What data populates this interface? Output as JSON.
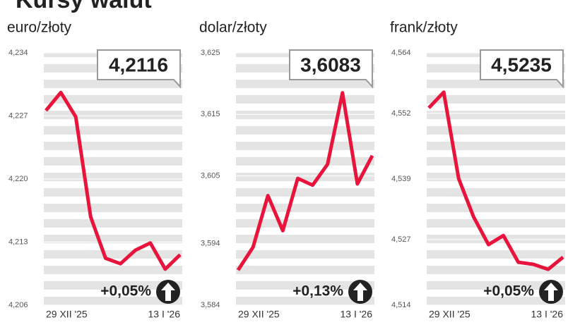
{
  "title": "Kursy walut",
  "chart_data": [
    {
      "type": "line",
      "title": "euro/złoty",
      "categories": [
        "29 XII '25",
        null,
        null,
        null,
        null,
        null,
        null,
        null,
        null,
        "13 I '26"
      ],
      "series": [
        {
          "color": "#e8143c",
          "values": [
            4.2276,
            4.2296,
            4.2269,
            4.2158,
            4.2112,
            4.2106,
            4.2121,
            4.2129,
            4.21,
            4.2116
          ]
        }
      ],
      "ylim": [
        4.206,
        4.234
      ],
      "yticks": [
        {
          "value": 4.206,
          "label": "4,206"
        },
        {
          "value": 4.213,
          "label": "4,213"
        },
        {
          "value": 4.22,
          "label": "4,220"
        },
        {
          "value": 4.227,
          "label": "4,227"
        },
        {
          "value": 4.234,
          "label": "4,234"
        }
      ],
      "annotations": {
        "current": "4,2116",
        "change": "+0,05%"
      }
    },
    {
      "type": "line",
      "title": "dolar/złoty",
      "categories": [
        "29 XII '25",
        null,
        null,
        null,
        null,
        null,
        null,
        null,
        null,
        "13 I '26"
      ],
      "series": [
        {
          "color": "#e8143c",
          "values": [
            3.5897,
            3.5934,
            3.6018,
            3.5961,
            3.6046,
            3.6035,
            3.6069,
            3.6185,
            3.6037,
            3.6083
          ]
        }
      ],
      "ylim": [
        3.584,
        3.625
      ],
      "yticks": [
        {
          "value": 3.584,
          "label": "3,584"
        },
        {
          "value": 3.594,
          "label": "3,594"
        },
        {
          "value": 3.605,
          "label": "3,605"
        },
        {
          "value": 3.615,
          "label": "3,615"
        },
        {
          "value": 3.625,
          "label": "3,625"
        }
      ],
      "annotations": {
        "current": "3,6083",
        "change": "+0,13%"
      }
    },
    {
      "type": "line",
      "title": "frank/złoty",
      "categories": [
        "29 XII '25",
        null,
        null,
        null,
        null,
        null,
        null,
        null,
        null,
        "13 I '26"
      ],
      "series": [
        {
          "color": "#e8143c",
          "values": [
            4.5531,
            4.5562,
            4.5391,
            4.5315,
            4.526,
            4.5278,
            4.5225,
            4.5221,
            4.5211,
            4.5235
          ]
        }
      ],
      "ylim": [
        4.514,
        4.564
      ],
      "yticks": [
        {
          "value": 4.514,
          "label": "4,514"
        },
        {
          "value": 4.527,
          "label": "4,527"
        },
        {
          "value": 4.539,
          "label": "4,539"
        },
        {
          "value": 4.552,
          "label": "4,552"
        },
        {
          "value": 4.564,
          "label": "4,564"
        }
      ],
      "annotations": {
        "current": "4,5235",
        "change": "+0,05%"
      }
    }
  ]
}
